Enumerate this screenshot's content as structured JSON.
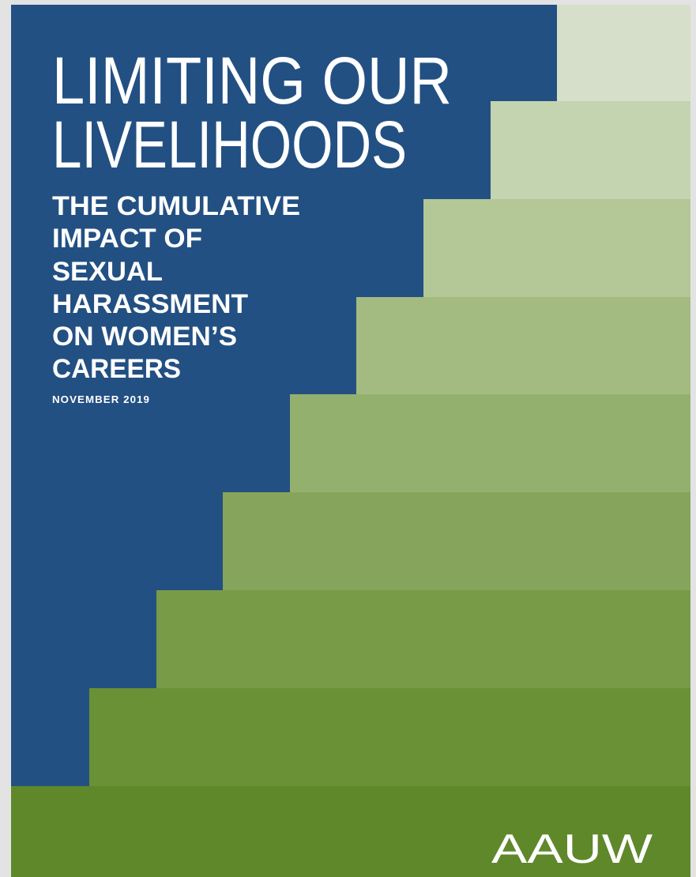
{
  "header": {
    "title": [
      "LIMITING OUR",
      "LIVELIHOODS"
    ],
    "subtitle": [
      "THE CUMULATIVE",
      "IMPACT OF",
      "SEXUAL",
      "HARASSMENT",
      "ON WOMEN’S",
      "CAREERS"
    ],
    "date": "NOVEMBER 2019"
  },
  "footer": {
    "logo": "AAUW"
  }
}
